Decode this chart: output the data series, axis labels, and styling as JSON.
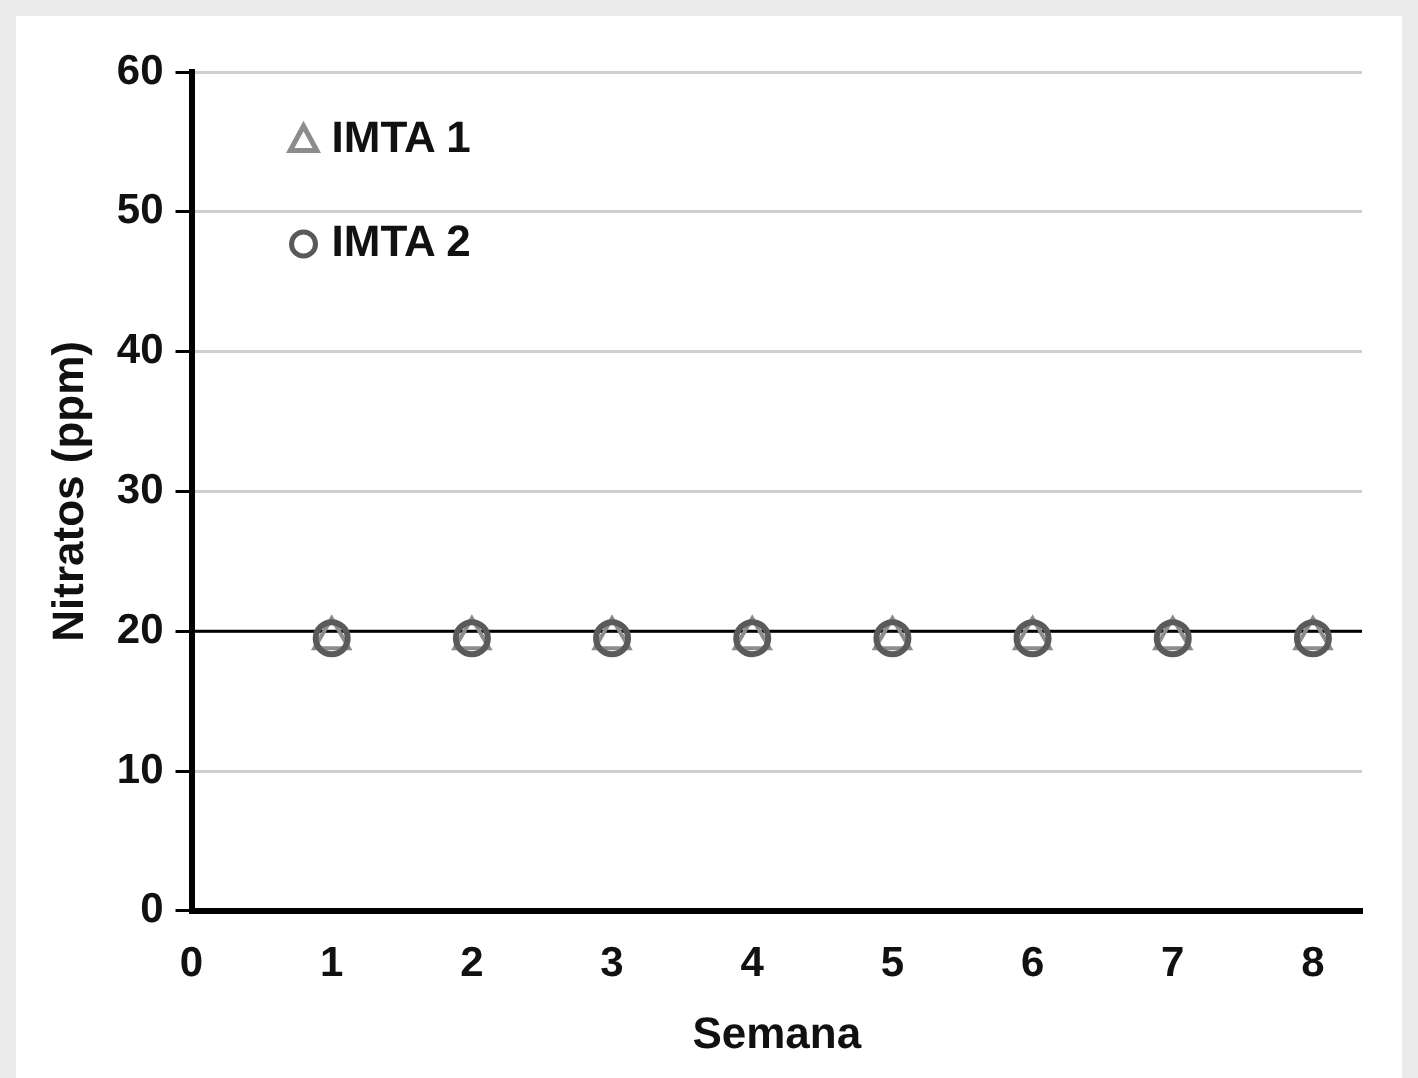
{
  "chart_data": {
    "type": "scatter",
    "xlabel": "Semana",
    "ylabel": "Nitratos (ppm)",
    "x": [
      1,
      2,
      3,
      4,
      5,
      6,
      7,
      8
    ],
    "series": [
      {
        "name": "IMTA 1",
        "color": "#8c8c8c",
        "marker": "triangle",
        "values": [
          19.5,
          19.5,
          19.5,
          19.5,
          19.5,
          19.5,
          19.5,
          19.5
        ]
      },
      {
        "name": "IMTA 2",
        "color": "#5a5a5a",
        "marker": "circle",
        "values": [
          19.5,
          19.5,
          19.5,
          19.5,
          19.5,
          19.5,
          19.5,
          19.5
        ]
      }
    ],
    "xlim": [
      0,
      8.35
    ],
    "xticks": [
      0,
      1,
      2,
      3,
      4,
      5,
      6,
      7,
      8
    ],
    "ylim": [
      0,
      60
    ],
    "yticks": [
      0,
      10,
      20,
      30,
      40,
      50,
      60
    ],
    "ref_lines": [
      {
        "axis": "y",
        "value": 20,
        "color": "#000000",
        "line_style": "solid"
      }
    ],
    "grid": "y",
    "legend": "top left"
  }
}
